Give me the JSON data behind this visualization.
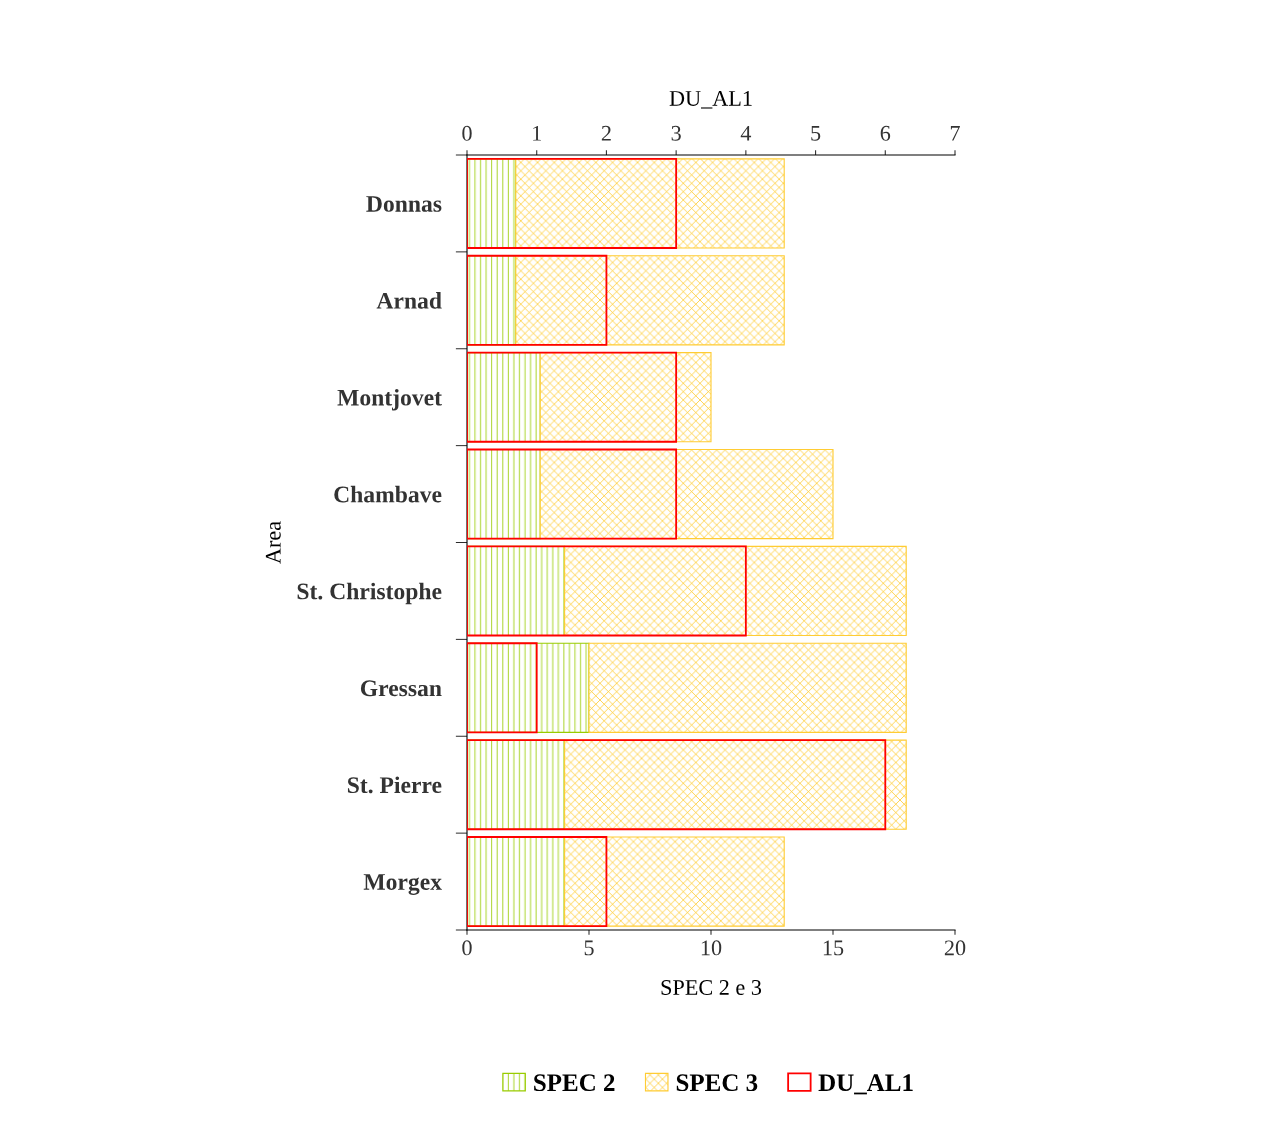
{
  "chart_data": [
    {
      "type": "bar",
      "orientation": "horizontal",
      "stacked": true,
      "ylabel": "Area",
      "xlabel": "SPEC 2 e 3",
      "categories": [
        "Donnas",
        "Arnad",
        "Montjovet",
        "Chambave",
        "St. Christophe",
        "Gressan",
        "St. Pierre",
        "Morgex"
      ],
      "series": [
        {
          "name": "SPEC 2",
          "color": "#99cc00",
          "values": [
            2,
            2,
            3,
            3,
            4,
            5,
            4,
            4
          ]
        },
        {
          "name": "SPEC 3",
          "color": "#ffcc33",
          "values": [
            11,
            11,
            7,
            12,
            14,
            13,
            14,
            9
          ]
        }
      ],
      "xlim": [
        0,
        20
      ],
      "xticks": [
        0,
        5,
        10,
        15,
        20
      ],
      "grid": false,
      "legend": "bottom"
    },
    {
      "type": "bar",
      "orientation": "horizontal",
      "xlabel": "DU_AL1",
      "tick_labels": "x",
      "categories": [
        null,
        null,
        null,
        null,
        null,
        null,
        null,
        null
      ],
      "series": [
        {
          "name": "DU_AL1",
          "color": "#ff0000",
          "values": [
            3,
            2,
            3,
            3,
            4,
            1,
            6,
            2
          ]
        }
      ],
      "xlim": [
        0,
        7
      ],
      "xticks": [
        0,
        1,
        2,
        3,
        4,
        5,
        6,
        7
      ],
      "grid": false,
      "legend": "bottom"
    }
  ]
}
